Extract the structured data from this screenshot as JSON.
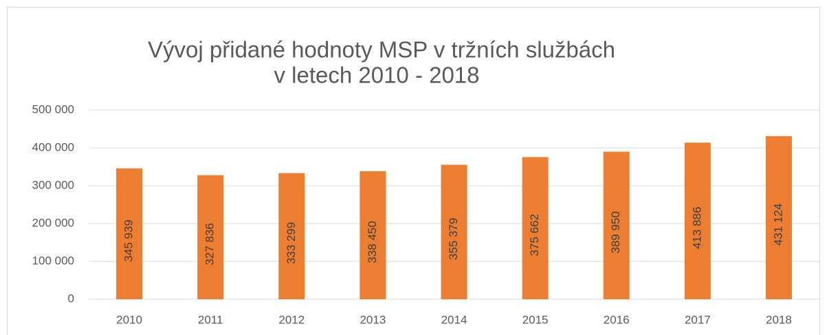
{
  "chart_data": {
    "type": "bar",
    "title": [
      "Vývoj přidané hodnoty MSP v tržních službách",
      "v letech 2010 - 2018"
    ],
    "categories": [
      "2010",
      "2011",
      "2012",
      "2013",
      "2014",
      "2015",
      "2016",
      "2017",
      "2018"
    ],
    "values": [
      345939,
      327836,
      333299,
      338450,
      355379,
      375662,
      389950,
      413886,
      431124
    ],
    "value_labels": [
      "345 939",
      "327 836",
      "333 299",
      "338 450",
      "355 379",
      "375 662",
      "389 950",
      "413 886",
      "431 124"
    ],
    "color": "#ed7d31",
    "ylim": [
      0,
      500000
    ],
    "yticks": [
      0,
      {
        "value": 100000,
        "label": "100 000"
      },
      {
        "value": 200000,
        "label": "200 000"
      },
      {
        "value": 300000,
        "label": "300 000"
      },
      {
        "value": 400000,
        "label": "400 000"
      },
      {
        "value": 500000,
        "label": "500 000"
      }
    ],
    "grid": true
  }
}
